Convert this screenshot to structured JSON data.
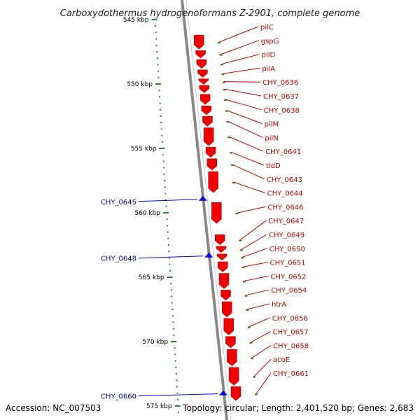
{
  "title": "Carboxydothermus hydrogenoformans Z-2901, complete genome",
  "accession": "Accession: NC_007503",
  "topology": "Topology: circular; Length: 2,401,520 bp; Genes: 2,683",
  "colors": {
    "forward_gene": "#ee0000",
    "reverse_gene": "#0000ee",
    "forward_label": "#cc0000",
    "reverse_label": "#0000aa",
    "ruler_dots": "#228822",
    "backbone": "#888888"
  },
  "ruler": {
    "unit": "kbp",
    "ticks": [
      {
        "kbp": 545,
        "label": "545 kbp"
      },
      {
        "kbp": 550,
        "label": "550 kbp"
      },
      {
        "kbp": 555,
        "label": "555 kbp"
      },
      {
        "kbp": 560,
        "label": "560 kbp"
      },
      {
        "kbp": 565,
        "label": "565 kbp"
      },
      {
        "kbp": 570,
        "label": "570 kbp"
      },
      {
        "kbp": 575,
        "label": "575 kbp"
      }
    ]
  },
  "forward_genes": [
    {
      "name": "pilC",
      "kbp": 546.2
    },
    {
      "name": "gspG",
      "kbp": 547.4
    },
    {
      "name": "pilD",
      "kbp": 548.1
    },
    {
      "name": "pilA",
      "kbp": 548.9
    },
    {
      "name": "CHY_0636",
      "kbp": 549.6
    },
    {
      "name": "CHY_0637",
      "kbp": 550.1
    },
    {
      "name": "CHY_0638",
      "kbp": 550.8
    },
    {
      "name": "pilM",
      "kbp": 551.7
    },
    {
      "name": "pilN",
      "kbp": 552.5
    },
    {
      "name": "CHY_0641",
      "kbp": 553.4
    },
    {
      "name": "tldD",
      "kbp": 554.9
    },
    {
      "name": "CHY_0643",
      "kbp": 555.8
    },
    {
      "name": "CHY_0644",
      "kbp": 556.8
    },
    {
      "name": "CHY_0646",
      "kbp": 559.2
    },
    {
      "name": "CHY_0647",
      "kbp": 561.7
    },
    {
      "name": "CHY_0649",
      "kbp": 562.6
    },
    {
      "name": "CHY_0650",
      "kbp": 563.2
    },
    {
      "name": "CHY_0651",
      "kbp": 563.8
    },
    {
      "name": "CHY_0652",
      "kbp": 564.7
    },
    {
      "name": "CHY_0654",
      "kbp": 566.0
    },
    {
      "name": "htrA",
      "kbp": 566.9
    },
    {
      "name": "CHY_0656",
      "kbp": 568.2
    },
    {
      "name": "CHY_0657",
      "kbp": 569.6
    },
    {
      "name": "CHY_0658",
      "kbp": 570.6
    },
    {
      "name": "acoE",
      "kbp": 572.0
    },
    {
      "name": "CHY_0661",
      "kbp": 573.5
    }
  ],
  "reverse_genes": [
    {
      "name": "CHY_0645",
      "kbp": 558.9
    },
    {
      "name": "CHY_0648",
      "kbp": 563.3
    },
    {
      "name": "CHY_0660",
      "kbp": 574.0
    }
  ]
}
